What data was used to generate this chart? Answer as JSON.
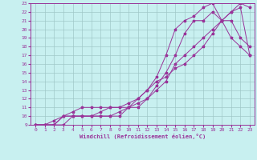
{
  "background_color": "#c8f0f0",
  "line_color": "#993399",
  "grid_color": "#a0c8c8",
  "xlabel": "Windchill (Refroidissement éolien,°C)",
  "xlim": [
    -0.5,
    23.5
  ],
  "ylim": [
    9,
    23
  ],
  "yticks": [
    9,
    10,
    11,
    12,
    13,
    14,
    15,
    16,
    17,
    18,
    19,
    20,
    21,
    22,
    23
  ],
  "xticks": [
    0,
    1,
    2,
    3,
    4,
    5,
    6,
    7,
    8,
    9,
    10,
    11,
    12,
    13,
    14,
    15,
    16,
    17,
    18,
    19,
    20,
    21,
    22,
    23
  ],
  "lines": [
    {
      "x": [
        0,
        1,
        2,
        3,
        4,
        5,
        6,
        7,
        8,
        9,
        10,
        11,
        12,
        13,
        14,
        15,
        16,
        17,
        18,
        19,
        20,
        21,
        22,
        23
      ],
      "y": [
        9,
        9,
        9,
        10,
        10,
        10,
        10,
        10,
        10,
        10,
        11,
        11,
        12,
        13,
        14,
        16,
        17,
        18,
        19,
        20,
        21,
        22,
        22.5,
        17
      ]
    },
    {
      "x": [
        0,
        1,
        2,
        3,
        4,
        5,
        6,
        7,
        8,
        9,
        10,
        11,
        12,
        13,
        14,
        15,
        16,
        17,
        18,
        19,
        20,
        21,
        22,
        23
      ],
      "y": [
        9,
        9,
        9,
        10,
        10.5,
        11,
        11,
        11,
        11,
        11,
        11.5,
        12,
        13,
        14.5,
        17,
        20,
        21,
        21.5,
        22.5,
        23,
        21,
        19,
        18,
        17
      ]
    },
    {
      "x": [
        0,
        1,
        2,
        3,
        4,
        5,
        6,
        7,
        8,
        9,
        10,
        11,
        12,
        13,
        14,
        15,
        16,
        17,
        18,
        19,
        20,
        21,
        22,
        23
      ],
      "y": [
        9,
        9,
        9,
        9,
        10,
        10,
        10,
        10,
        10,
        10.5,
        11,
        11.5,
        12,
        13.5,
        15,
        17,
        19.5,
        21,
        21,
        22,
        21,
        21,
        19,
        18
      ]
    },
    {
      "x": [
        0,
        1,
        2,
        3,
        4,
        5,
        6,
        7,
        8,
        9,
        10,
        11,
        12,
        13,
        14,
        15,
        16,
        17,
        18,
        19,
        20,
        21,
        22,
        23
      ],
      "y": [
        9,
        9,
        9.5,
        10,
        10,
        10,
        10,
        10.5,
        11,
        11,
        11,
        12,
        13,
        14,
        14.5,
        15.5,
        16,
        17,
        18,
        19.5,
        21,
        22,
        23,
        22.5
      ]
    }
  ]
}
